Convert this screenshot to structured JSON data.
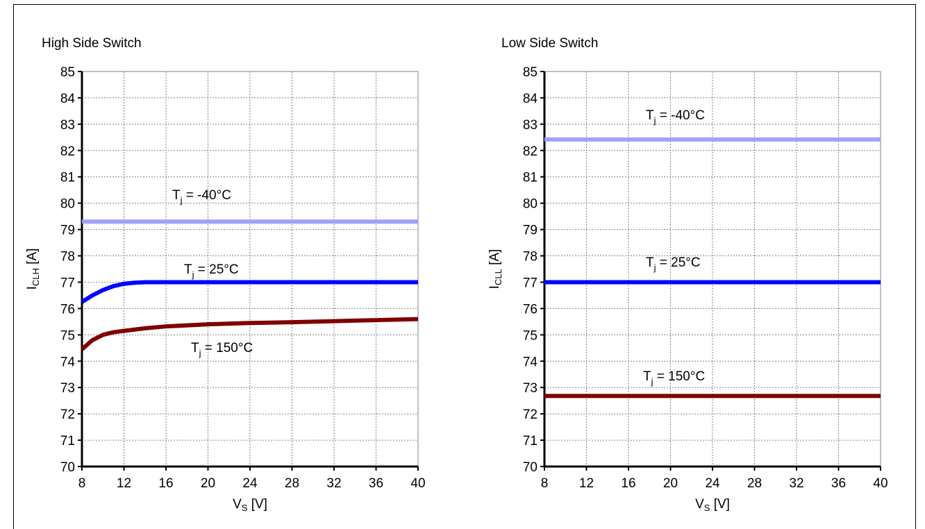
{
  "chart_data": [
    {
      "type": "line",
      "title": "High Side Switch",
      "xlabel": "V",
      "xlabel_sub": "S",
      "xlabel_unit": " [V]",
      "ylabel": "I",
      "ylabel_sub": "CLH",
      "ylabel_unit": " [A]",
      "xlim": [
        8,
        40
      ],
      "ylim": [
        70,
        85
      ],
      "xticks": [
        8,
        12,
        16,
        20,
        24,
        28,
        32,
        36,
        40
      ],
      "yticks": [
        70,
        71,
        72,
        73,
        74,
        75,
        76,
        77,
        78,
        79,
        80,
        81,
        82,
        83,
        84,
        85
      ],
      "grid": true,
      "series": [
        {
          "name": "T_j = -40°C",
          "label_main": "T",
          "label_sub": "j",
          "label_rest": " = -40°C",
          "color": "#a0a0ff",
          "x": [
            8,
            40
          ],
          "y": [
            79.3,
            79.3
          ]
        },
        {
          "name": "T_j = 25°C",
          "label_main": "T",
          "label_sub": "j",
          "label_rest": " = 25°C",
          "color": "#0000ff",
          "x": [
            8,
            9,
            10,
            11,
            12,
            13,
            14,
            15,
            40
          ],
          "y": [
            76.25,
            76.5,
            76.7,
            76.85,
            76.94,
            76.98,
            77.0,
            77.0,
            77.0
          ]
        },
        {
          "name": "T_j = 150°C",
          "label_main": "T",
          "label_sub": "j",
          "label_rest": " = 150°C",
          "color": "#800000",
          "x": [
            8,
            9,
            10,
            11,
            12,
            14,
            16,
            20,
            24,
            28,
            32,
            36,
            40
          ],
          "y": [
            74.45,
            74.8,
            75.0,
            75.1,
            75.15,
            75.25,
            75.32,
            75.4,
            75.45,
            75.48,
            75.52,
            75.56,
            75.6
          ]
        }
      ]
    },
    {
      "type": "line",
      "title": "Low Side Switch",
      "xlabel": "V",
      "xlabel_sub": "S",
      "xlabel_unit": " [V]",
      "ylabel": "I",
      "ylabel_sub": "CLL",
      "ylabel_unit": " [A]",
      "xlim": [
        8,
        40
      ],
      "ylim": [
        70,
        85
      ],
      "xticks": [
        8,
        12,
        16,
        20,
        24,
        28,
        32,
        36,
        40
      ],
      "yticks": [
        70,
        71,
        72,
        73,
        74,
        75,
        76,
        77,
        78,
        79,
        80,
        81,
        82,
        83,
        84,
        85
      ],
      "grid": true,
      "series": [
        {
          "name": "T_j = -40°C",
          "label_main": "T",
          "label_sub": "j",
          "label_rest": " = -40°C",
          "color": "#a0a0ff",
          "x": [
            8,
            40
          ],
          "y": [
            82.42,
            82.42
          ]
        },
        {
          "name": "T_j = 25°C",
          "label_main": "T",
          "label_sub": "j",
          "label_rest": " = 25°C",
          "color": "#0000ff",
          "x": [
            8,
            40
          ],
          "y": [
            77.0,
            77.0
          ]
        },
        {
          "name": "T_j = 150°C",
          "label_main": "T",
          "label_sub": "j",
          "label_rest": " = 150°C",
          "color": "#800000",
          "x": [
            8,
            40
          ],
          "y": [
            72.68,
            72.68
          ]
        }
      ]
    }
  ]
}
